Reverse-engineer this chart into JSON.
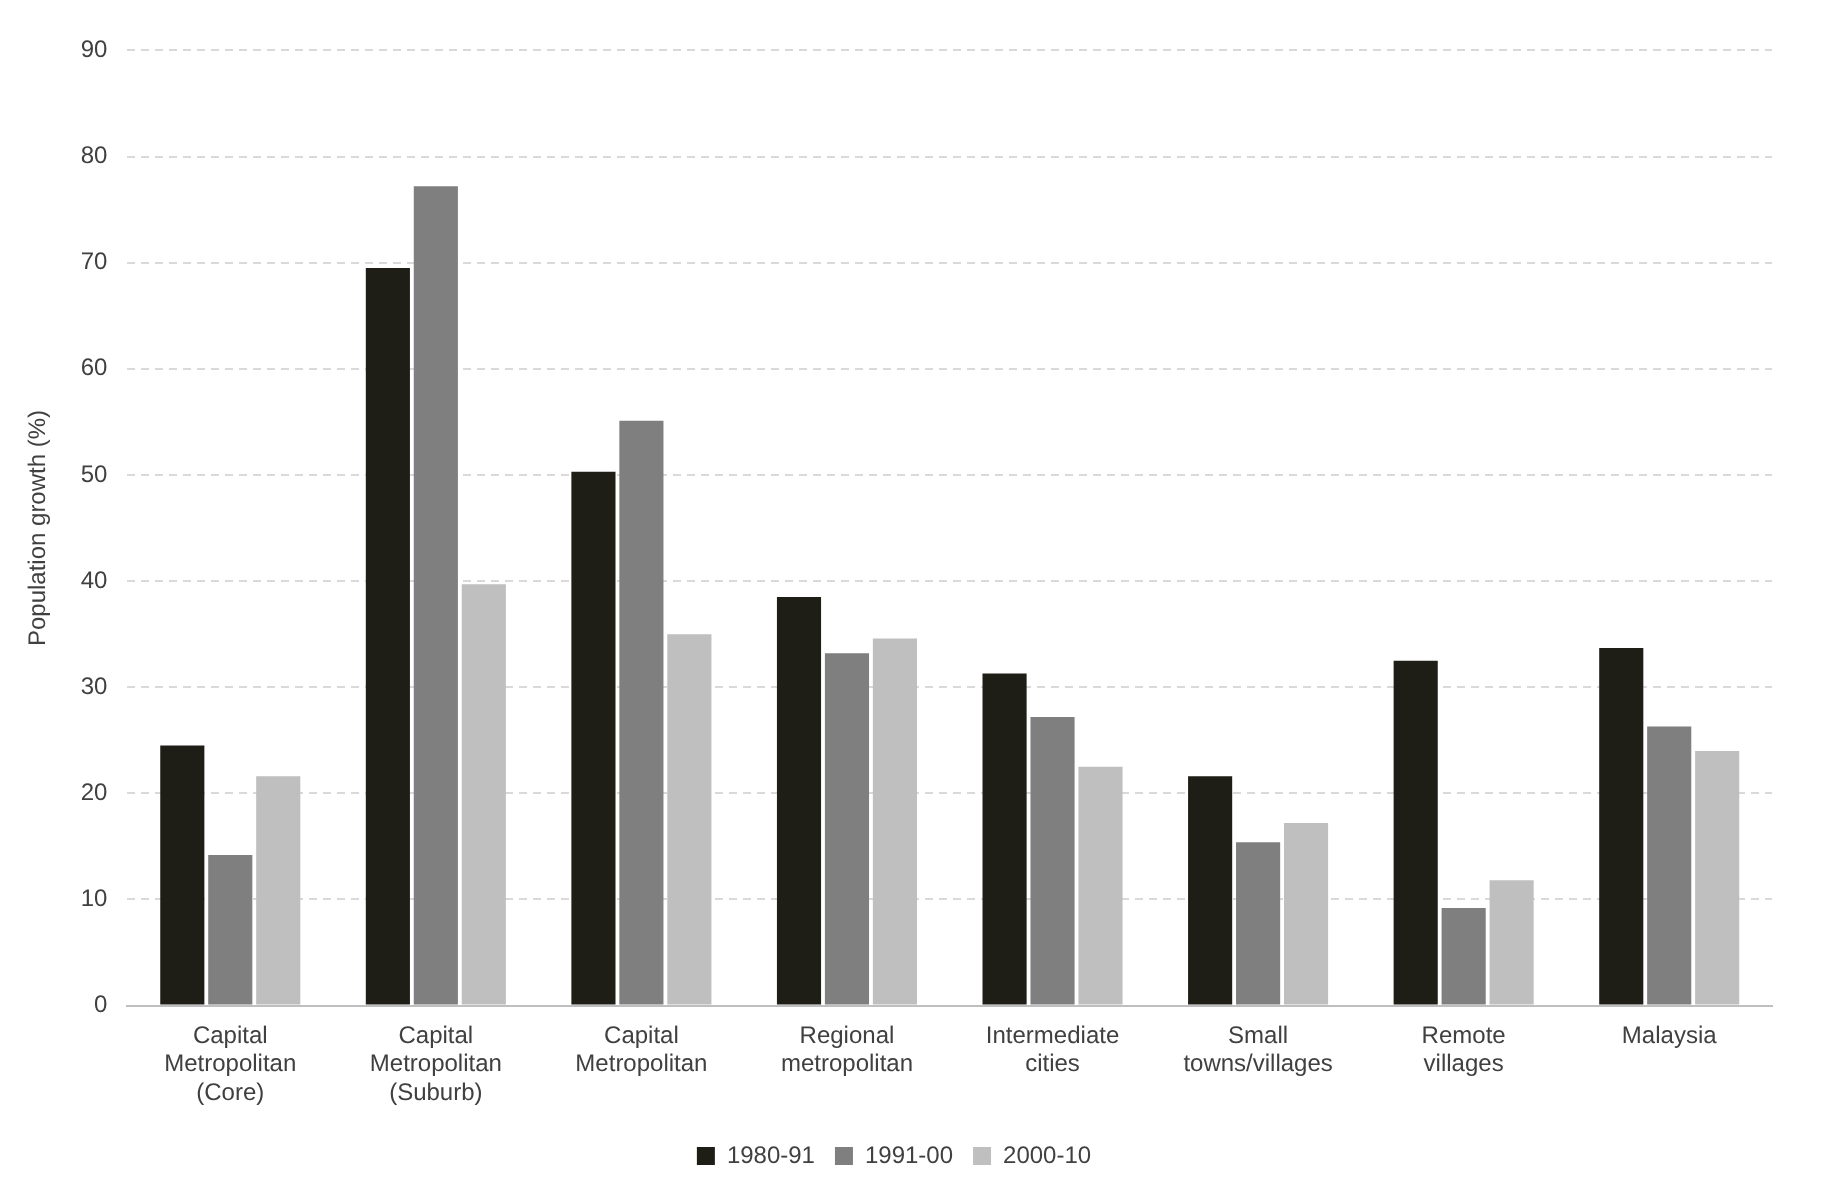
{
  "chart_data": {
    "type": "bar",
    "ylabel": "Population growth (%)",
    "categories": [
      "Capital Metropolitan (Core)",
      "Capital Metropolitan (Suburb)",
      "Capital Metropolitan",
      "Regional metropolitan",
      "Intermediate cities",
      "Small towns/villages",
      "Remote villages",
      "Malaysia"
    ],
    "series": [
      {
        "name": "1980-91",
        "color": "#1f1e16",
        "values": [
          24.5,
          69.5,
          50.3,
          38.5,
          31.3,
          21.6,
          32.5,
          33.7
        ]
      },
      {
        "name": "1991-00",
        "color": "#7f7f7f",
        "values": [
          14.2,
          77.2,
          55.1,
          33.2,
          27.2,
          15.4,
          9.2,
          26.3
        ]
      },
      {
        "name": "2000-10",
        "color": "#bfbfbf",
        "values": [
          21.6,
          39.7,
          35,
          34.6,
          22.5,
          17.2,
          11.8,
          24
        ]
      }
    ],
    "ylim": [
      0,
      90
    ],
    "yticks": [
      0,
      10,
      20,
      30,
      40,
      50,
      60,
      70,
      80,
      90
    ],
    "grid": "y",
    "legend": "bottom"
  }
}
